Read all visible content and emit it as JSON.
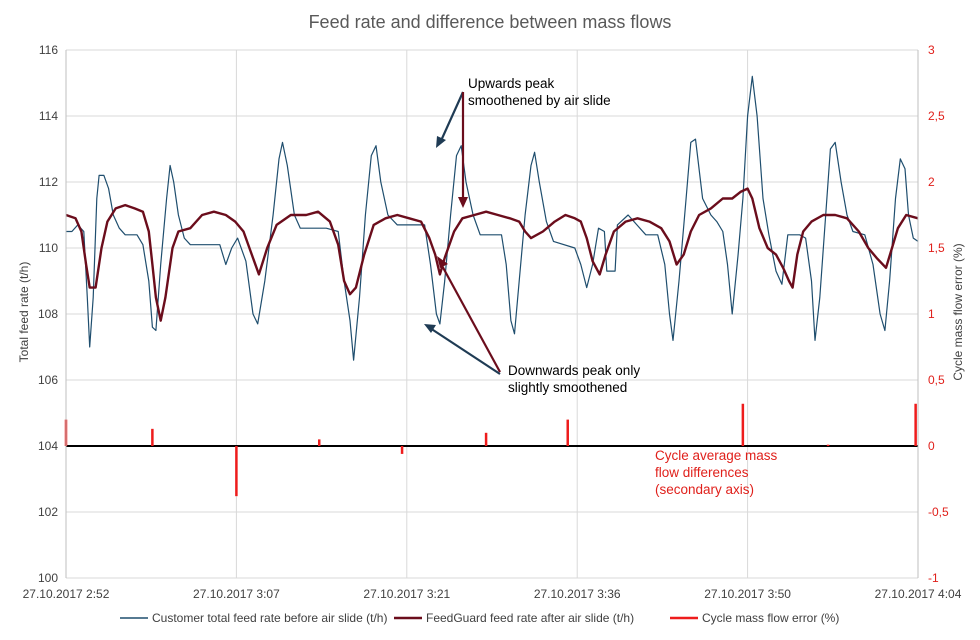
{
  "colors": {
    "customer": "#1f4e6e",
    "feedguard": "#6b0d1c",
    "error": "#ee1c1c",
    "grid": "#d9d9d9",
    "red_axis": "#e0201b"
  },
  "chart_data": {
    "type": "line",
    "title": "Feed rate and difference between mass flows",
    "xlabel": "",
    "ylabel": "Total feed rate (t/h)",
    "y2label": "Cycle mass flow error (%)",
    "ylim": [
      100,
      116
    ],
    "y2lim": [
      -1,
      3
    ],
    "x_unit": "minutes since 27.10.2017 2:52",
    "xlim": [
      0,
      72
    ],
    "x_tick_labels": [
      "27.10.2017 2:52",
      "27.10.2017 3:07",
      "27.10.2017 3:21",
      "27.10.2017 3:36",
      "27.10.2017 3:50",
      "27.10.2017 4:04"
    ],
    "x_tick_positions": [
      0,
      14.4,
      28.8,
      43.2,
      57.6,
      72
    ],
    "y_ticks": [
      100,
      102,
      104,
      106,
      108,
      110,
      112,
      114,
      116
    ],
    "y2_ticks": [
      "-1",
      "-0,5",
      "0",
      "0,5",
      "1",
      "1,5",
      "2",
      "2,5",
      "3"
    ],
    "series": [
      {
        "name": "Customer total feed rate before air slide (t/h)",
        "axis": "primary",
        "points": [
          [
            0,
            110.5
          ],
          [
            0.5,
            110.5
          ],
          [
            1,
            110.7
          ],
          [
            1.5,
            110.5
          ],
          [
            1.8,
            108.5
          ],
          [
            2,
            107.0
          ],
          [
            2.3,
            108.5
          ],
          [
            2.6,
            111.5
          ],
          [
            2.8,
            112.2
          ],
          [
            3.2,
            112.2
          ],
          [
            3.6,
            111.8
          ],
          [
            4,
            111.0
          ],
          [
            4.5,
            110.6
          ],
          [
            5,
            110.4
          ],
          [
            6,
            110.4
          ],
          [
            6.5,
            110.1
          ],
          [
            7,
            109.0
          ],
          [
            7.3,
            107.6
          ],
          [
            7.6,
            107.5
          ],
          [
            8,
            109.5
          ],
          [
            8.5,
            111.5
          ],
          [
            8.8,
            112.5
          ],
          [
            9.1,
            112.0
          ],
          [
            9.5,
            111.0
          ],
          [
            10,
            110.3
          ],
          [
            10.5,
            110.1
          ],
          [
            12,
            110.1
          ],
          [
            13,
            110.1
          ],
          [
            13.5,
            109.5
          ],
          [
            14,
            110.0
          ],
          [
            14.5,
            110.3
          ],
          [
            15.2,
            109.6
          ],
          [
            15.8,
            108.0
          ],
          [
            16.2,
            107.7
          ],
          [
            16.8,
            109.0
          ],
          [
            17.5,
            111.0
          ],
          [
            18,
            112.7
          ],
          [
            18.3,
            113.2
          ],
          [
            18.7,
            112.5
          ],
          [
            19.3,
            111.0
          ],
          [
            19.8,
            110.6
          ],
          [
            22,
            110.6
          ],
          [
            23,
            110.5
          ],
          [
            23.5,
            109.0
          ],
          [
            24,
            107.8
          ],
          [
            24.3,
            106.6
          ],
          [
            24.8,
            108.5
          ],
          [
            25.3,
            111.0
          ],
          [
            25.8,
            112.8
          ],
          [
            26.2,
            113.1
          ],
          [
            26.6,
            112.0
          ],
          [
            27.2,
            111.0
          ],
          [
            28,
            110.7
          ],
          [
            29.5,
            110.7
          ],
          [
            30.3,
            110.7
          ],
          [
            30.8,
            109.5
          ],
          [
            31.3,
            108.0
          ],
          [
            31.6,
            107.7
          ],
          [
            32,
            109.0
          ],
          [
            32.5,
            111.0
          ],
          [
            33,
            112.8
          ],
          [
            33.4,
            113.1
          ],
          [
            33.8,
            112.0
          ],
          [
            34.4,
            111.0
          ],
          [
            35,
            110.4
          ],
          [
            36.8,
            110.4
          ],
          [
            37.2,
            109.5
          ],
          [
            37.6,
            107.8
          ],
          [
            37.9,
            107.4
          ],
          [
            38.3,
            109.0
          ],
          [
            38.8,
            111.0
          ],
          [
            39.3,
            112.5
          ],
          [
            39.6,
            112.9
          ],
          [
            40,
            112.0
          ],
          [
            40.6,
            110.8
          ],
          [
            41.2,
            110.2
          ],
          [
            43,
            110.0
          ],
          [
            43.5,
            109.5
          ],
          [
            44,
            108.8
          ],
          [
            44.5,
            109.5
          ],
          [
            45,
            110.6
          ],
          [
            45.5,
            110.5
          ],
          [
            45.7,
            109.3
          ],
          [
            46.4,
            109.3
          ],
          [
            46.6,
            110.7
          ],
          [
            47.5,
            111.0
          ],
          [
            48,
            110.8
          ],
          [
            49,
            110.4
          ],
          [
            50,
            110.4
          ],
          [
            50.6,
            109.5
          ],
          [
            51,
            108.0
          ],
          [
            51.3,
            107.2
          ],
          [
            51.8,
            109.0
          ],
          [
            52.4,
            111.5
          ],
          [
            52.8,
            113.2
          ],
          [
            53.2,
            113.3
          ],
          [
            53.8,
            111.5
          ],
          [
            54.5,
            111.0
          ],
          [
            55,
            110.8
          ],
          [
            55.5,
            110.5
          ],
          [
            55.9,
            109.5
          ],
          [
            56.3,
            108.0
          ],
          [
            56.8,
            109.8
          ],
          [
            57.2,
            111.5
          ],
          [
            57.6,
            114.0
          ],
          [
            58,
            115.2
          ],
          [
            58.4,
            114.0
          ],
          [
            58.9,
            111.5
          ],
          [
            59.4,
            110.4
          ],
          [
            60,
            109.3
          ],
          [
            60.5,
            108.9
          ],
          [
            61,
            110.4
          ],
          [
            61.5,
            110.4
          ],
          [
            62,
            110.4
          ],
          [
            62.5,
            110.3
          ],
          [
            63,
            109.0
          ],
          [
            63.3,
            107.2
          ],
          [
            63.7,
            108.5
          ],
          [
            64.2,
            111.0
          ],
          [
            64.6,
            113.0
          ],
          [
            65,
            113.2
          ],
          [
            65.5,
            112.0
          ],
          [
            66,
            111.0
          ],
          [
            66.5,
            110.5
          ],
          [
            67.5,
            110.4
          ],
          [
            68.2,
            109.5
          ],
          [
            68.8,
            108.0
          ],
          [
            69.2,
            107.5
          ],
          [
            69.6,
            109.0
          ],
          [
            70.1,
            111.5
          ],
          [
            70.5,
            112.7
          ],
          [
            70.9,
            112.4
          ],
          [
            71.2,
            111.0
          ],
          [
            71.6,
            110.3
          ],
          [
            72,
            110.2
          ]
        ]
      },
      {
        "name": "FeedGuard feed rate after air slide (t/h)",
        "axis": "primary",
        "points": [
          [
            0,
            111.0
          ],
          [
            0.8,
            110.9
          ],
          [
            1.3,
            110.5
          ],
          [
            1.7,
            109.5
          ],
          [
            2,
            108.8
          ],
          [
            2.5,
            108.8
          ],
          [
            3,
            110.0
          ],
          [
            3.5,
            110.8
          ],
          [
            4.2,
            111.2
          ],
          [
            5,
            111.3
          ],
          [
            5.8,
            111.2
          ],
          [
            6.5,
            111.1
          ],
          [
            7,
            110.5
          ],
          [
            7.3,
            109.5
          ],
          [
            7.6,
            108.5
          ],
          [
            8,
            107.8
          ],
          [
            8.4,
            108.5
          ],
          [
            9,
            110.0
          ],
          [
            9.5,
            110.5
          ],
          [
            10.5,
            110.6
          ],
          [
            11.5,
            111.0
          ],
          [
            12.5,
            111.1
          ],
          [
            13.5,
            111.0
          ],
          [
            14.3,
            110.8
          ],
          [
            15,
            110.5
          ],
          [
            15.7,
            109.8
          ],
          [
            16.3,
            109.2
          ],
          [
            17,
            110.0
          ],
          [
            17.8,
            110.7
          ],
          [
            19,
            111.0
          ],
          [
            20.3,
            111.0
          ],
          [
            21.3,
            111.1
          ],
          [
            22.3,
            110.8
          ],
          [
            23,
            110.1
          ],
          [
            23.5,
            109.0
          ],
          [
            24,
            108.6
          ],
          [
            24.5,
            108.8
          ],
          [
            25.2,
            109.8
          ],
          [
            26,
            110.7
          ],
          [
            27,
            110.9
          ],
          [
            28,
            111.0
          ],
          [
            29,
            110.9
          ],
          [
            30,
            110.8
          ],
          [
            30.7,
            110.3
          ],
          [
            31.2,
            109.8
          ],
          [
            31.6,
            109.2
          ],
          [
            32,
            109.7
          ],
          [
            32.8,
            110.5
          ],
          [
            33.5,
            110.9
          ],
          [
            34.5,
            111.0
          ],
          [
            35.5,
            111.1
          ],
          [
            36.5,
            111.0
          ],
          [
            37.5,
            110.9
          ],
          [
            38.3,
            110.8
          ],
          [
            38.8,
            110.5
          ],
          [
            39.3,
            110.3
          ],
          [
            40.3,
            110.5
          ],
          [
            41.3,
            110.8
          ],
          [
            42.2,
            111.0
          ],
          [
            43,
            110.9
          ],
          [
            43.5,
            110.8
          ],
          [
            44,
            110.3
          ],
          [
            44.5,
            109.6
          ],
          [
            45.1,
            109.2
          ],
          [
            45.6,
            109.8
          ],
          [
            46.3,
            110.5
          ],
          [
            47.3,
            110.8
          ],
          [
            48.3,
            110.9
          ],
          [
            49.3,
            110.8
          ],
          [
            50.3,
            110.6
          ],
          [
            51,
            110.2
          ],
          [
            51.6,
            109.5
          ],
          [
            52.2,
            109.8
          ],
          [
            52.8,
            110.5
          ],
          [
            53.5,
            111.0
          ],
          [
            54.5,
            111.2
          ],
          [
            55.5,
            111.5
          ],
          [
            56.3,
            111.5
          ],
          [
            57,
            111.7
          ],
          [
            57.6,
            111.8
          ],
          [
            58,
            111.5
          ],
          [
            58.6,
            110.6
          ],
          [
            59.3,
            110.0
          ],
          [
            60,
            109.8
          ],
          [
            60.6,
            109.4
          ],
          [
            61.1,
            109.0
          ],
          [
            61.4,
            108.8
          ],
          [
            61.8,
            109.8
          ],
          [
            62.3,
            110.5
          ],
          [
            63,
            110.8
          ],
          [
            64,
            111.0
          ],
          [
            65,
            111.0
          ],
          [
            66,
            110.9
          ],
          [
            67,
            110.5
          ],
          [
            67.8,
            110.0
          ],
          [
            68.5,
            109.7
          ],
          [
            69.3,
            109.4
          ],
          [
            69.8,
            110.0
          ],
          [
            70.3,
            110.6
          ],
          [
            71,
            111.0
          ],
          [
            72,
            110.9
          ]
        ]
      },
      {
        "name": "Cycle mass flow error (%)",
        "axis": "secondary",
        "spikes": [
          [
            0,
            0.2
          ],
          [
            7.3,
            0.13
          ],
          [
            14.4,
            -0.38
          ],
          [
            21.4,
            0.05
          ],
          [
            28.4,
            -0.06
          ],
          [
            35.5,
            0.1
          ],
          [
            42.4,
            0.2
          ],
          [
            57.2,
            0.32
          ],
          [
            64.4,
            0.01
          ],
          [
            71.8,
            0.32
          ]
        ]
      }
    ],
    "annotations": [
      {
        "id": "up",
        "lines": [
          "Upwards peak",
          "smoothened by air slide"
        ]
      },
      {
        "id": "down",
        "lines": [
          "Downwards peak only",
          "slightly smoothened"
        ]
      },
      {
        "id": "cycle",
        "lines": [
          "Cycle average mass",
          "flow differences",
          "(secondary axis)"
        ]
      }
    ]
  }
}
